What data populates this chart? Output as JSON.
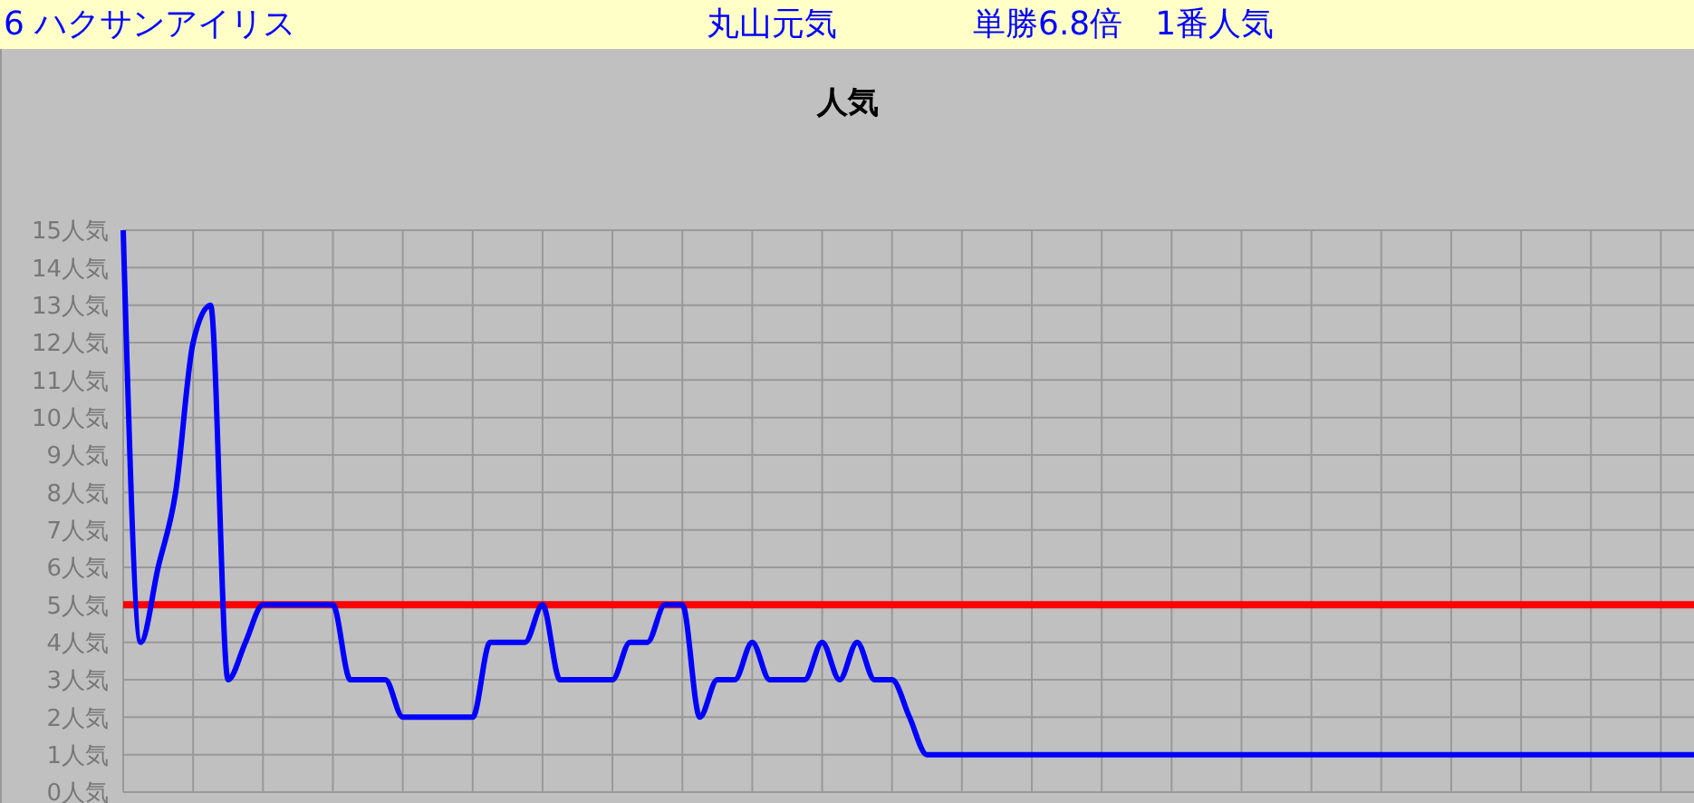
{
  "chart_data": {
    "type": "line",
    "title": "人気",
    "annotations": [
      "6 ハクサンアイリス",
      "丸山元気",
      "単勝6.8倍　1番人気"
    ],
    "categories": [
      null,
      null,
      null,
      null,
      null,
      null,
      null,
      null,
      null,
      null,
      null,
      null,
      null,
      null,
      null,
      null,
      null,
      null,
      null,
      null,
      null,
      null,
      null,
      null,
      null,
      null,
      null,
      null,
      null,
      null,
      null,
      null,
      null,
      null,
      null,
      null,
      null,
      null,
      null,
      null,
      null,
      null,
      null,
      null,
      null,
      null,
      null,
      null,
      null,
      null,
      null,
      null,
      null,
      null,
      null,
      null,
      null,
      null,
      null,
      null,
      null,
      null,
      null,
      null,
      null,
      null,
      null,
      null,
      null,
      null,
      null,
      null,
      null,
      null,
      null,
      null,
      null,
      null,
      null,
      null,
      null,
      null,
      null,
      null,
      null,
      null,
      null,
      null,
      null,
      null,
      null
    ],
    "series": [
      {
        "color": "#0000ff",
        "values": [
          15,
          4,
          6,
          8,
          12,
          13,
          3,
          4,
          5,
          5,
          5,
          5,
          5,
          3,
          3,
          3,
          2,
          2,
          2,
          2,
          2,
          4,
          4,
          4,
          5,
          3,
          3,
          3,
          3,
          4,
          4,
          5,
          5,
          2,
          3,
          3,
          4,
          3,
          3,
          3,
          4,
          3,
          4,
          3,
          3,
          2,
          1,
          1,
          1,
          1,
          1,
          1,
          1,
          1,
          1,
          1,
          1,
          1,
          1,
          1,
          1,
          1,
          1,
          1,
          1,
          1,
          1,
          1,
          1,
          1,
          1,
          1,
          1,
          1,
          1,
          1,
          1,
          1,
          1,
          1,
          1,
          1,
          1,
          1,
          1,
          1,
          1,
          1,
          1,
          1,
          1
        ]
      }
    ],
    "ylim": [
      0,
      15
    ],
    "yticks": [
      {
        "value": 0,
        "label": "0人気"
      },
      {
        "value": 1,
        "label": "1人気"
      },
      {
        "value": 2,
        "label": "2人気"
      },
      {
        "value": 3,
        "label": "3人気"
      },
      {
        "value": 4,
        "label": "4人気"
      },
      {
        "value": 5,
        "label": "5人気"
      },
      {
        "value": 6,
        "label": "6人気"
      },
      {
        "value": 7,
        "label": "7人気"
      },
      {
        "value": 8,
        "label": "8人気"
      },
      {
        "value": 9,
        "label": "9人気"
      },
      {
        "value": 10,
        "label": "10人気"
      },
      {
        "value": 11,
        "label": "11人気"
      },
      {
        "value": 12,
        "label": "12人気"
      },
      {
        "value": 13,
        "label": "13人気"
      },
      {
        "value": 14,
        "label": "14人気"
      },
      {
        "value": 15,
        "label": "15人気"
      }
    ],
    "ref_lines": [
      {
        "axis": "y",
        "value": 5,
        "color": "#ff0000"
      }
    ],
    "grid": true,
    "tick_labels": "y",
    "legend": false,
    "marker": "none",
    "line_style": "solid"
  }
}
